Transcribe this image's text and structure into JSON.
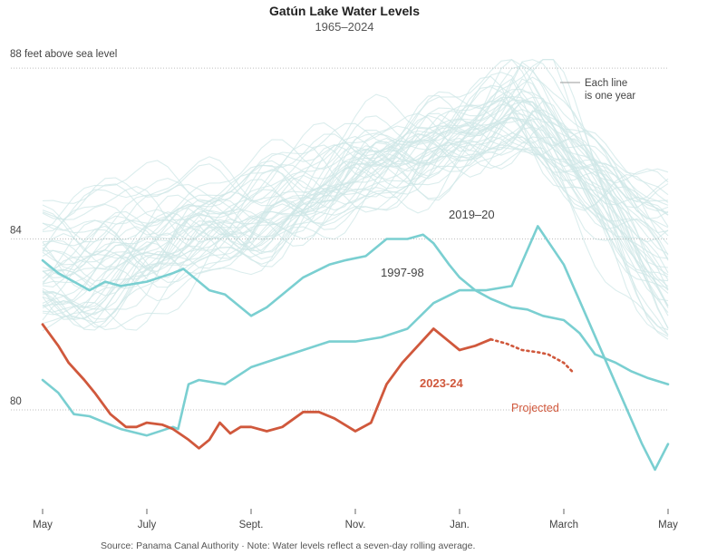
{
  "chart_data": {
    "type": "line",
    "title": "Gatún Lake Water Levels",
    "subtitle": "1965–2024",
    "y_top_label": "88 feet above sea level",
    "ylim": [
      77.6,
      88.3
    ],
    "yticks": [
      80,
      84,
      88
    ],
    "ytick_labels": [
      "80",
      "84",
      ""
    ],
    "x_categories": [
      "May",
      "July",
      "Sept.",
      "Nov.",
      "Jan.",
      "March",
      "May"
    ],
    "x_domain_months": [
      0,
      12
    ],
    "grid": true,
    "legend": {
      "placement": "top-right",
      "text_line1": "Each line",
      "text_line2": "is one year"
    },
    "colors": {
      "background_years": "#cfe7e7",
      "highlight_years": "#7acfd1",
      "current_year": "#d0583c",
      "grid": "#bfbfbf"
    },
    "series": [
      {
        "name": "2019–20",
        "style": "highlight",
        "x": [
          0,
          0.3,
          0.6,
          0.9,
          1.2,
          1.5,
          2.0,
          2.5,
          2.6,
          2.8,
          3.0,
          3.5,
          4.0,
          4.5,
          5.0,
          5.5,
          6.0,
          6.5,
          7.0,
          7.5,
          8.0,
          8.5,
          9.0,
          9.5,
          10.0,
          10.5,
          11.0,
          11.5,
          11.75,
          12.0
        ],
        "y": [
          80.7,
          80.4,
          79.9,
          79.85,
          79.7,
          79.55,
          79.4,
          79.6,
          79.55,
          80.6,
          80.7,
          80.6,
          81.0,
          81.2,
          81.4,
          81.6,
          81.6,
          81.7,
          81.9,
          82.5,
          82.8,
          82.8,
          82.9,
          84.3,
          83.4,
          82.0,
          80.6,
          79.2,
          78.6,
          79.2
        ]
      },
      {
        "name": "1997-98",
        "style": "highlight",
        "x": [
          0,
          0.3,
          0.6,
          0.9,
          1.2,
          1.5,
          2.0,
          2.5,
          2.7,
          2.9,
          3.2,
          3.5,
          4.0,
          4.3,
          4.6,
          5.0,
          5.5,
          5.8,
          6.2,
          6.6,
          7.0,
          7.3,
          7.5,
          7.8,
          8.0,
          8.3,
          8.6,
          9.0,
          9.3,
          9.6,
          10.0,
          10.3,
          10.6,
          11.0,
          11.3,
          11.6,
          12.0
        ],
        "y": [
          83.5,
          83.2,
          83.0,
          82.8,
          83.0,
          82.9,
          83.0,
          83.2,
          83.3,
          83.1,
          82.8,
          82.7,
          82.2,
          82.4,
          82.7,
          83.1,
          83.4,
          83.5,
          83.6,
          84.0,
          84.0,
          84.1,
          83.9,
          83.4,
          83.1,
          82.8,
          82.6,
          82.4,
          82.35,
          82.2,
          82.1,
          81.8,
          81.3,
          81.1,
          80.9,
          80.75,
          80.6
        ]
      },
      {
        "name": "2023-24",
        "style": "current",
        "x": [
          0,
          0.3,
          0.5,
          0.8,
          1.0,
          1.3,
          1.6,
          1.8,
          2.0,
          2.3,
          2.5,
          2.8,
          3.0,
          3.2,
          3.4,
          3.6,
          3.8,
          4.0,
          4.3,
          4.6,
          5.0,
          5.3,
          5.6,
          6.0,
          6.3,
          6.6,
          6.9,
          7.2,
          7.5,
          7.8,
          8.0,
          8.3,
          8.6,
          8.9,
          9.2,
          9.5,
          9.7,
          10.0,
          10.2
        ],
        "y": [
          82.0,
          81.5,
          81.1,
          80.7,
          80.4,
          79.9,
          79.6,
          79.6,
          79.7,
          79.65,
          79.55,
          79.3,
          79.1,
          79.3,
          79.7,
          79.45,
          79.6,
          79.6,
          79.5,
          79.6,
          79.95,
          79.95,
          79.8,
          79.5,
          79.7,
          80.6,
          81.1,
          81.5,
          81.9,
          81.6,
          81.4,
          81.5,
          81.65,
          81.55,
          81.4,
          81.35,
          81.3,
          81.1,
          80.85
        ]
      }
    ],
    "current_solid_until_month": 8.6,
    "annotations": {
      "label_2019": "2019–20",
      "label_1997": "1997-98",
      "label_2023": "2023-24",
      "projected": "Projected"
    },
    "source_text": "Source: Panama Canal Authority  ·  Note: Water levels reflect a seven-day rolling average."
  }
}
